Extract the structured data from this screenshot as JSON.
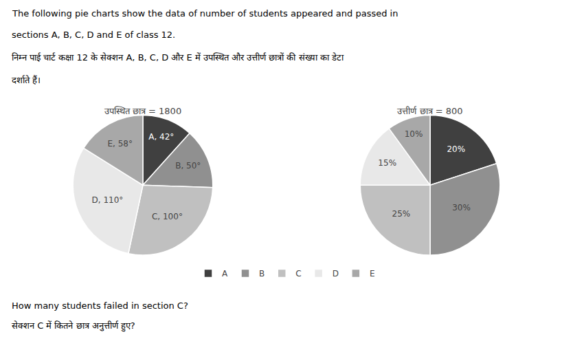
{
  "chart_data": [
    {
      "type": "pie",
      "title": "उपस्थित छात्र = 1800",
      "categories": [
        "A",
        "B",
        "C",
        "D",
        "E"
      ],
      "values": [
        42,
        50,
        100,
        110,
        58
      ],
      "value_labels": [
        "A, 42°",
        "B, 50°",
        "C, 100°",
        "D, 110°",
        "E, 58°"
      ],
      "colors": [
        "#404040",
        "#909090",
        "#c0c0c0",
        "#e8e8e8",
        "#a8a8a8"
      ],
      "data_labels": true,
      "legend": "bottom"
    },
    {
      "type": "pie",
      "title": "उत्तीर्ण छात्र = 800",
      "categories": [
        "A",
        "B",
        "C",
        "D",
        "E"
      ],
      "values": [
        20,
        30,
        25,
        15,
        10
      ],
      "value_labels": [
        "20%",
        "30%",
        "25%",
        "15%",
        "10%"
      ],
      "colors": [
        "#404040",
        "#909090",
        "#c0c0c0",
        "#e8e8e8",
        "#a8a8a8"
      ],
      "data_labels": true,
      "legend": "bottom"
    }
  ],
  "annotations": [
    "The following pie charts show the data of number of students appeared and passed in",
    "sections A, B, C, D and E of class 12.",
    "निम्न पाई चार्ट कक्षा 12 के सेक्शन A, B, C, D और E में उपस्थित और उत्तीर्ण छात्रों की संख्या का डेटा",
    "दर्शाते हैं।",
    "How many students failed in section C?",
    "सेक्शन C में कितने छात्र अनुत्तीर्ण हुए?"
  ]
}
